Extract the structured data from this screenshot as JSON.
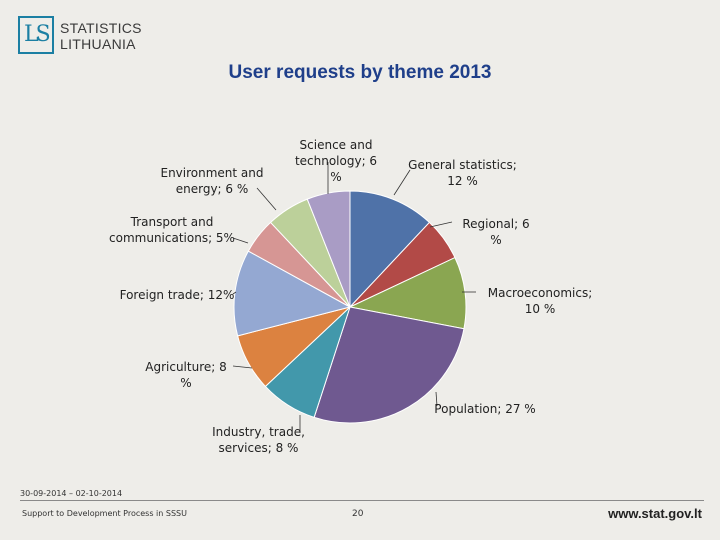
{
  "header": {
    "logo_letters": "LS",
    "logo_line1": "STATISTICS",
    "logo_line2": "LITHUANIA"
  },
  "chart_data": {
    "type": "pie",
    "title": "User requests by theme 2013",
    "slices": [
      {
        "label": "General statistics; 12 %",
        "name": "General statistics",
        "value": 12,
        "color": "#4f72a8"
      },
      {
        "label": "Regional; 6 %",
        "name": "Regional",
        "value": 6,
        "color": "#b24a47"
      },
      {
        "label": "Macroeconomics; 10 %",
        "name": "Macroeconomics",
        "value": 10,
        "color": "#8aa651"
      },
      {
        "label": "Population; 27 %",
        "name": "Population",
        "value": 27,
        "color": "#6f5990"
      },
      {
        "label": "Industry, trade, services; 8 %",
        "name": "Industry, trade, services",
        "value": 8,
        "color": "#4298ab"
      },
      {
        "label": "Agriculture; 8 %",
        "name": "Agriculture",
        "value": 8,
        "color": "#dc8240"
      },
      {
        "label": "Foreign trade; 12%",
        "name": "Foreign trade",
        "value": 12,
        "color": "#94a8d2"
      },
      {
        "label": "Transport and communications; 5%",
        "name": "Transport and communications",
        "value": 5,
        "color": "#d69694"
      },
      {
        "label": "Environment and energy; 6 %",
        "name": "Environment and energy",
        "value": 6,
        "color": "#bcd09a"
      },
      {
        "label": "Science and technology; 6 %",
        "name": "Science and technology",
        "value": 6,
        "color": "#a99cc5"
      }
    ]
  },
  "footer": {
    "date": "30-09-2014 – 02-10-2014",
    "left": "Support to Development Process in SSSU",
    "page": "20",
    "url": "www.stat.gov.lt"
  }
}
